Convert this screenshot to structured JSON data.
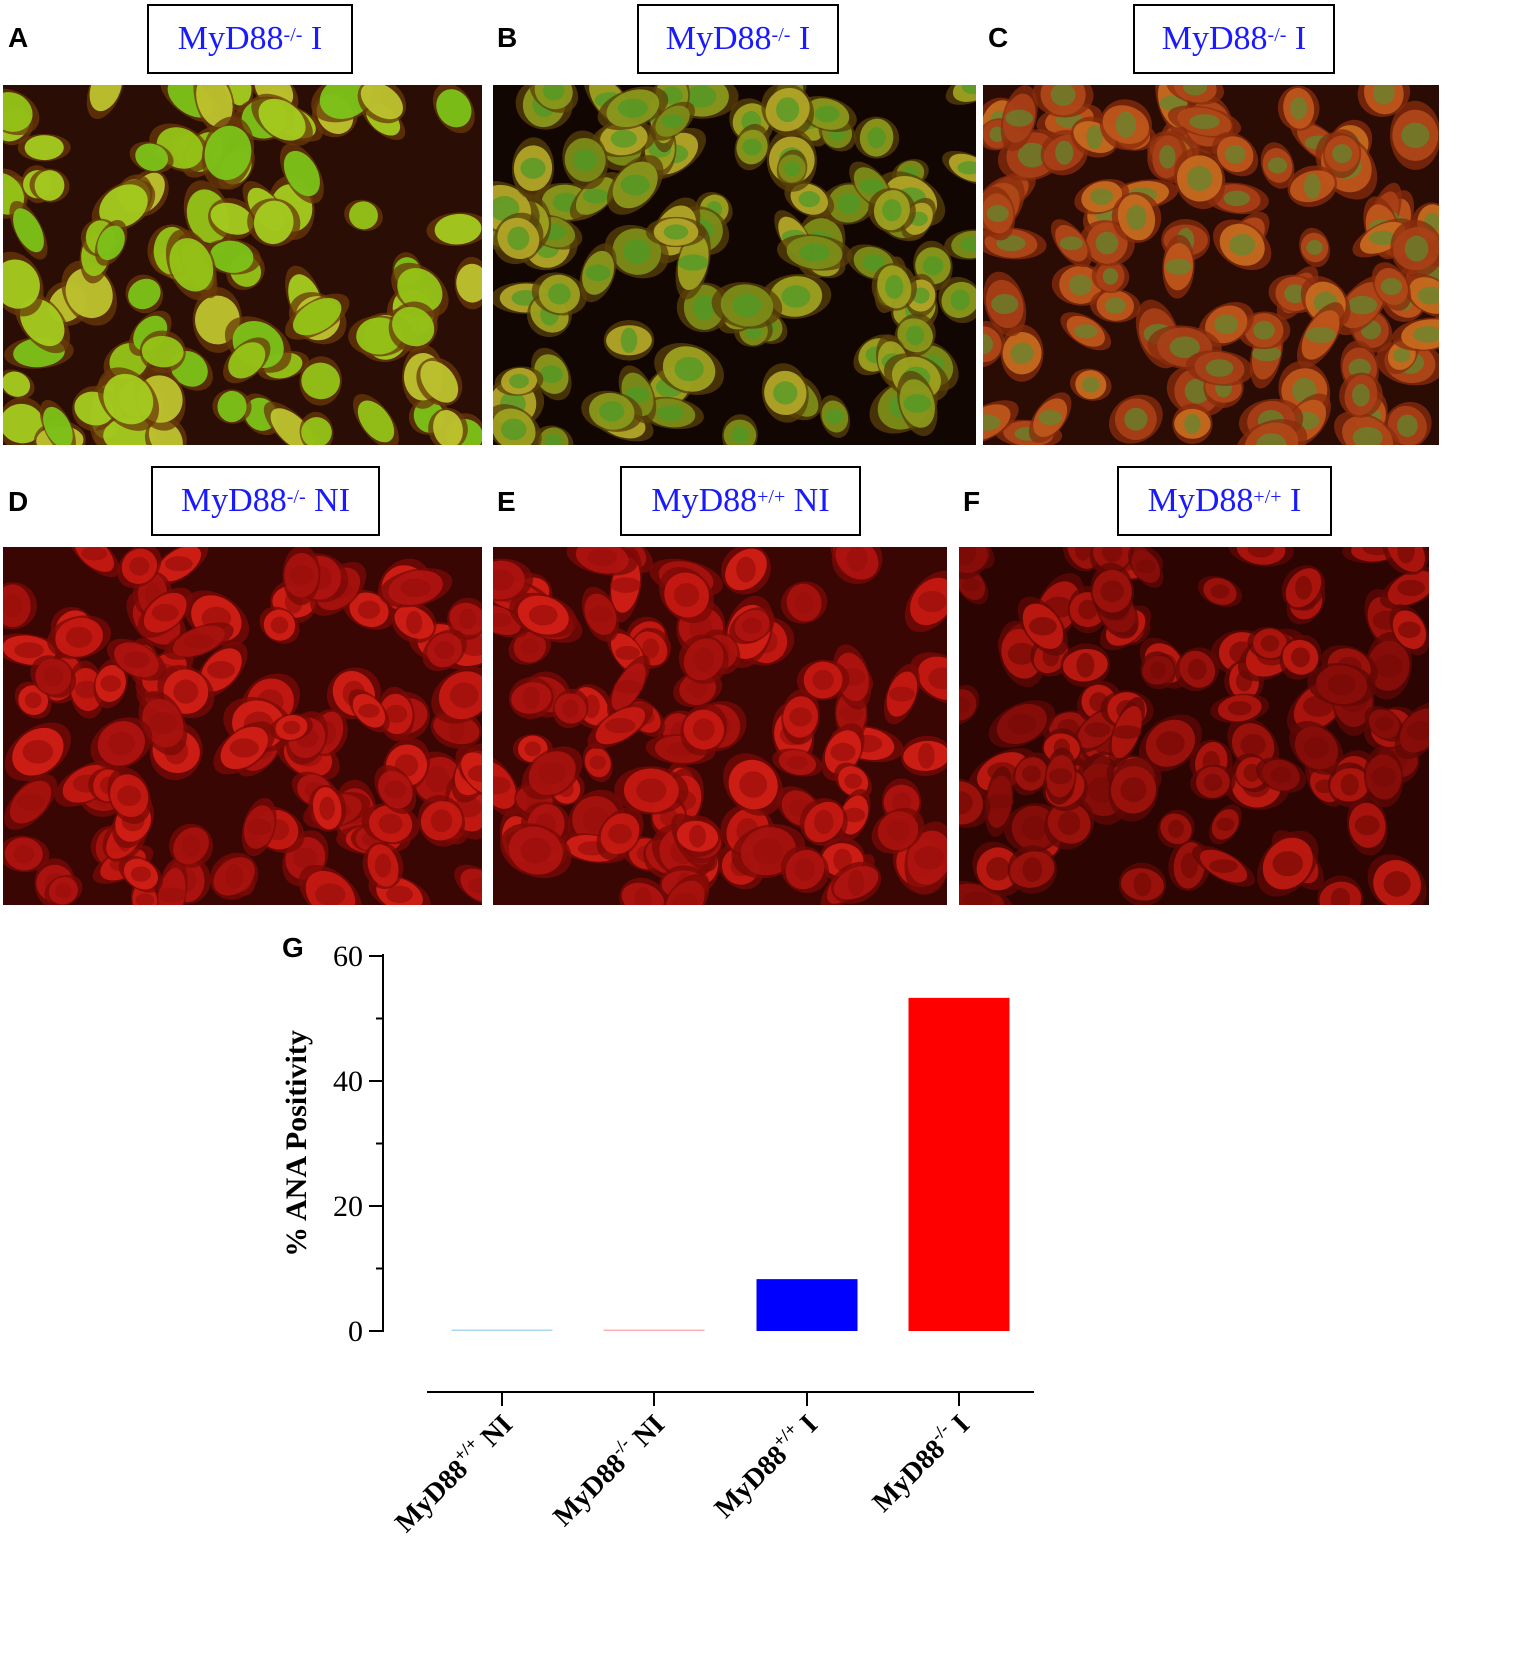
{
  "panels": [
    {
      "letter": "A",
      "base": "MyD88",
      "sup": "-/-",
      "suffix": " I",
      "scheme": "green"
    },
    {
      "letter": "B",
      "base": "MyD88",
      "sup": "-/-",
      "suffix": " I",
      "scheme": "speckled"
    },
    {
      "letter": "C",
      "base": "MyD88",
      "sup": "-/-",
      "suffix": " I",
      "scheme": "orange"
    },
    {
      "letter": "D",
      "base": "MyD88",
      "sup": "-/-",
      "suffix": " NI",
      "scheme": "red"
    },
    {
      "letter": "E",
      "base": "MyD88",
      "sup": "+/+",
      "suffix": " NI",
      "scheme": "red"
    },
    {
      "letter": "F",
      "base": "MyD88",
      "sup": "+/+",
      "suffix": " I",
      "scheme": "darkred"
    }
  ],
  "colors": {
    "label_text": "#1a1aff",
    "bar_blue": "#0000ff",
    "bar_red": "#ff0000",
    "bar_lightblue": "#a8d8f0",
    "bar_pink": "#ffb0b0"
  },
  "chart_data": {
    "panel_letter": "G",
    "type": "bar",
    "ylabel": "% ANA Positivity",
    "ylim": [
      0,
      60
    ],
    "yticks": [
      "0",
      "20",
      "40",
      "60"
    ],
    "categories": [
      {
        "base": "MyD88",
        "sup": "+/+",
        "suffix": " NI"
      },
      {
        "base": "MyD88",
        "sup": "-/-",
        "suffix": " NI"
      },
      {
        "base": "MyD88",
        "sup": "+/+",
        "suffix": " I"
      },
      {
        "base": "MyD88",
        "sup": "-/-",
        "suffix": " I"
      }
    ],
    "values": [
      0,
      0,
      8.3,
      53.3
    ],
    "bar_colors": [
      "#a8d8f0",
      "#ffb0b0",
      "#0000ff",
      "#ff0000"
    ]
  }
}
